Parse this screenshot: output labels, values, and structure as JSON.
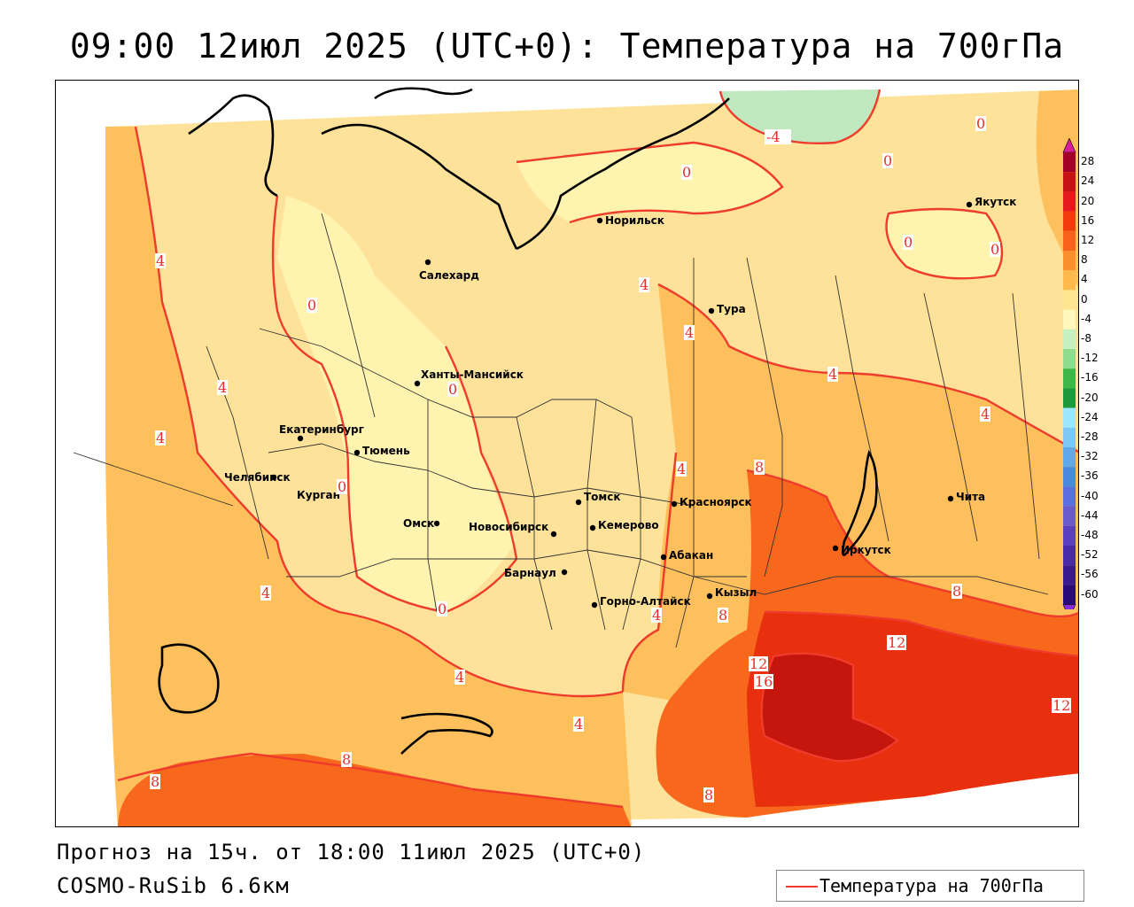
{
  "title": "09:00 12июл 2025 (UTC+0): Температура на 700гПа",
  "forecast": "Прогноз на 15ч. от 18:00 11июл 2025 (UTC+0)",
  "model": "COSMO-RuSib 6.6км",
  "legend": {
    "label": "Температура на 700гПа",
    "line_color": "#ef3b2c"
  },
  "colorbar": {
    "ticks": [
      "28",
      "24",
      "20",
      "16",
      "12",
      "8",
      "4",
      "0",
      "-4",
      "-8",
      "-12",
      "-16",
      "-20",
      "-24",
      "-28",
      "-32",
      "-36",
      "-40",
      "-44",
      "-48",
      "-52",
      "-56",
      "-60"
    ],
    "colors": [
      "#a50026",
      "#c51212",
      "#e41a1c",
      "#f03c0c",
      "#f7631b",
      "#fa8f2b",
      "#fdb94b",
      "#fee690",
      "#fff7bc",
      "#c7f0c0",
      "#8fdc8f",
      "#41b648",
      "#1f9a3a",
      "#9ee6ff",
      "#7ec8f5",
      "#5fa8ea",
      "#4a89dc",
      "#5c6ee0",
      "#6a5acd",
      "#5a3fbf",
      "#4b2aa8",
      "#3b1a90",
      "#2a0a78"
    ],
    "arrow_top_color": "#d81b9a",
    "arrow_bottom_color": "#8a2be2"
  },
  "cities": [
    {
      "name": "Норильск"
    },
    {
      "name": "Якутск"
    },
    {
      "name": "Салехард"
    },
    {
      "name": "Тура"
    },
    {
      "name": "Ханты-Мансийск"
    },
    {
      "name": "Екатеринбург"
    },
    {
      "name": "Тюмень"
    },
    {
      "name": "Челябинск"
    },
    {
      "name": "Курган"
    },
    {
      "name": "Омск"
    },
    {
      "name": "Новосибирск"
    },
    {
      "name": "Томск"
    },
    {
      "name": "Кемерово"
    },
    {
      "name": "Красноярск"
    },
    {
      "name": "Барнаул"
    },
    {
      "name": "Абакан"
    },
    {
      "name": "Горно-Алтайск"
    },
    {
      "name": "Кызыл"
    },
    {
      "name": "Иркутск"
    },
    {
      "name": "Чита"
    }
  ],
  "isotherm_labels": [
    "-4",
    "0",
    "0",
    "0",
    "0",
    "0",
    "0",
    "0",
    "0",
    "0",
    "4",
    "4",
    "4",
    "4",
    "4",
    "4",
    "4",
    "4",
    "4",
    "4",
    "4",
    "4",
    "8",
    "8",
    "8",
    "8",
    "8",
    "8",
    "12",
    "12",
    "12",
    "16"
  ]
}
